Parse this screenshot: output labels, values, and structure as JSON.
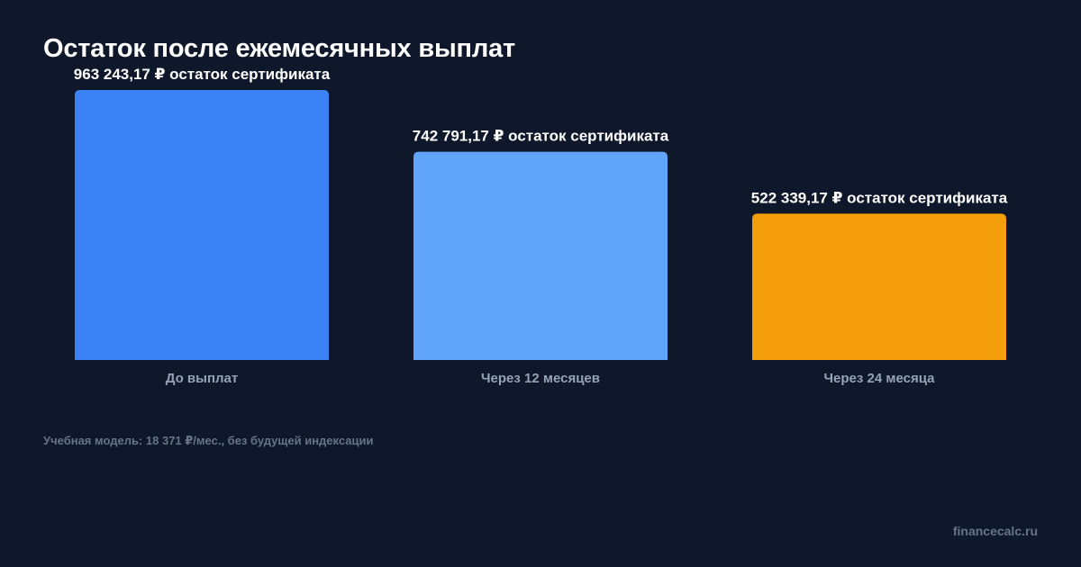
{
  "title": "Остаток после ежемесячных выплат",
  "note": "Учебная модель: 18 371 ₽/мес., без будущей индексации",
  "brand": "financecalc.ru",
  "colors": {
    "background": "#0f172a",
    "bar_1": "#3b82f6",
    "bar_2": "#60a5fa",
    "bar_3": "#f59e0b",
    "label": "#ffffff",
    "category": "#94a3b8",
    "muted": "#64748b"
  },
  "chart_data": {
    "type": "bar",
    "title": "Остаток после ежемесячных выплат",
    "categories": [
      "До выплат",
      "Через 12 месяцев",
      "Через 24 месяца"
    ],
    "values": [
      963243.17,
      742791.17,
      522339.17
    ],
    "data_labels": [
      "963 243,17 ₽ остаток сертификата",
      "742 791,17 ₽ остаток сертификата",
      "522 339,17 ₽ остаток сертификата"
    ],
    "bar_colors": [
      "#3b82f6",
      "#60a5fa",
      "#f59e0b"
    ],
    "ylim": [
      0,
      963243.17
    ],
    "grid": false,
    "legend": "none",
    "xlabel": "",
    "ylabel": ""
  }
}
